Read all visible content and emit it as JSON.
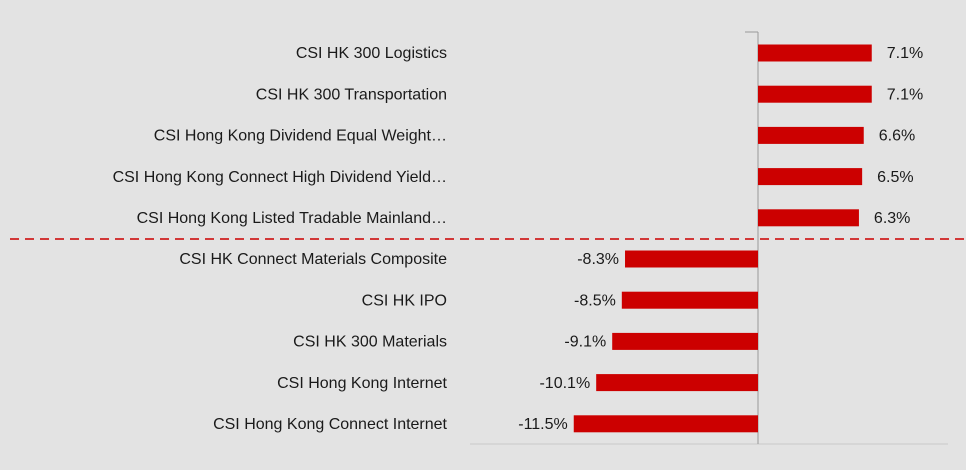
{
  "chart_data": {
    "type": "barh",
    "categories": [
      "CSI HK 300 Logistics",
      "CSI HK 300 Transportation",
      "CSI Hong Kong Dividend Equal Weight…",
      "CSI Hong Kong Connect High Dividend Yield…",
      "CSI Hong Kong Listed Tradable Mainland…",
      "CSI HK Connect Materials Composite",
      "CSI HK IPO",
      "CSI HK 300 Materials",
      "CSI Hong Kong Internet",
      "CSI Hong Kong Connect Internet"
    ],
    "values": [
      7.1,
      7.1,
      6.6,
      6.5,
      6.3,
      -8.3,
      -8.5,
      -9.1,
      -10.1,
      -11.5
    ],
    "value_labels": [
      "7.1%",
      "7.1%",
      "6.6%",
      "6.5%",
      "6.3%",
      "-8.3%",
      "-8.5%",
      "-9.1%",
      "-10.1%",
      "-11.5%"
    ],
    "color": "#cc0000"
  }
}
